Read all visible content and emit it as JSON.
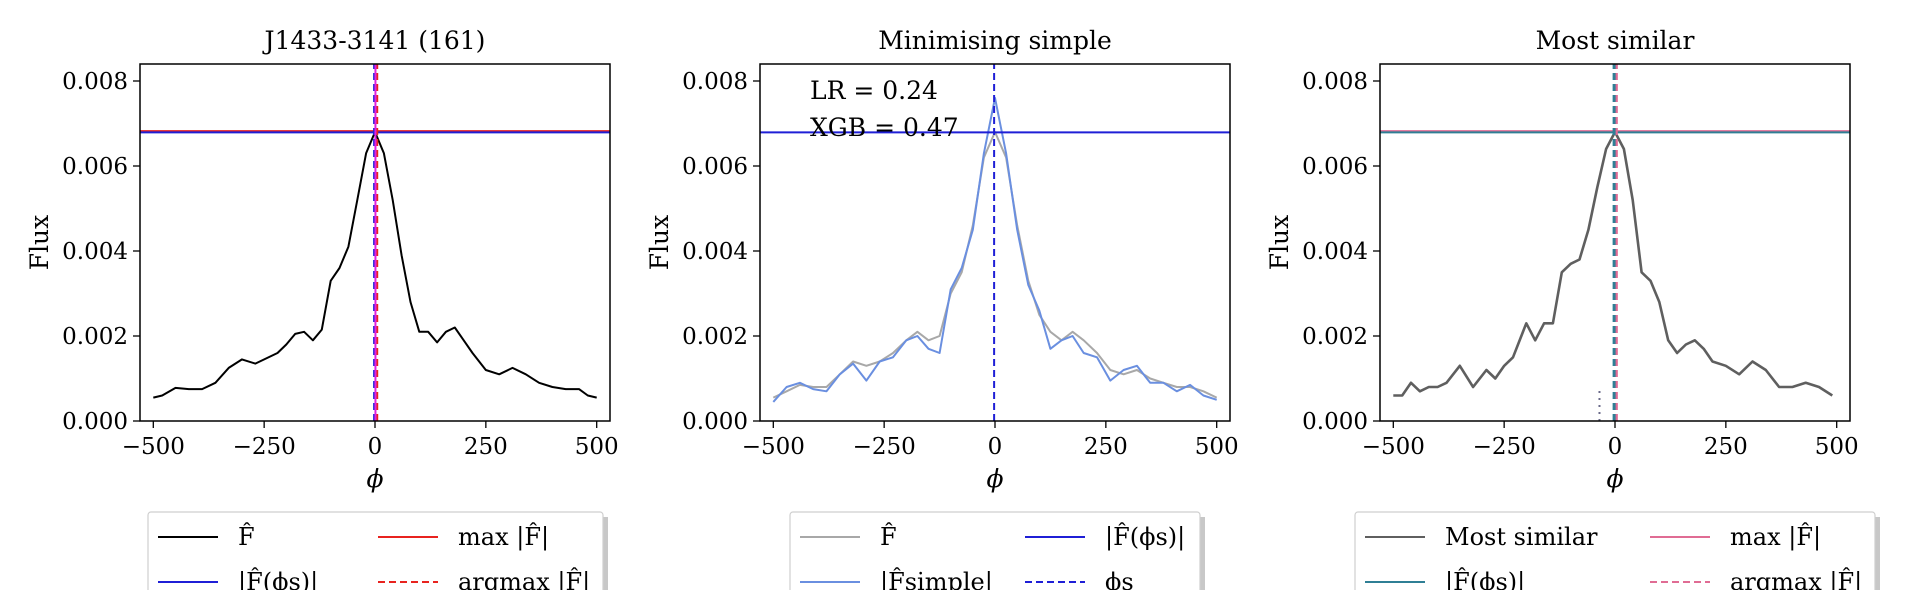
{
  "chart_data": [
    {
      "type": "line",
      "title": "J1433-3141 (161)",
      "xlabel": "ϕ",
      "ylabel": "Flux",
      "xlim": [
        -530,
        530
      ],
      "ylim": [
        0,
        0.0084
      ],
      "xticks": [
        -500,
        -250,
        0,
        250,
        500
      ],
      "xtick_labels": [
        "−500",
        "−250",
        "0",
        "250",
        "500"
      ],
      "yticks": [
        0,
        0.002,
        0.004,
        0.006,
        0.008
      ],
      "ytick_labels": [
        "0.000",
        "0.002",
        "0.004",
        "0.006",
        "0.008"
      ],
      "annotations": [],
      "series": [
        {
          "name": "F̂",
          "style": "solid",
          "color": "#000000",
          "x": [
            -500,
            -480,
            -450,
            -420,
            -390,
            -360,
            -330,
            -300,
            -270,
            -250,
            -220,
            -200,
            -180,
            -160,
            -140,
            -120,
            -100,
            -80,
            -60,
            -40,
            -20,
            0,
            20,
            40,
            60,
            80,
            100,
            120,
            140,
            160,
            180,
            200,
            220,
            250,
            280,
            310,
            340,
            370,
            400,
            430,
            460,
            480,
            500
          ],
          "y": [
            0.00055,
            0.0006,
            0.00078,
            0.00075,
            0.00075,
            0.0009,
            0.00125,
            0.00145,
            0.00135,
            0.00145,
            0.0016,
            0.0018,
            0.00205,
            0.0021,
            0.0019,
            0.00215,
            0.0033,
            0.0036,
            0.0041,
            0.0052,
            0.0063,
            0.0068,
            0.0063,
            0.0052,
            0.0039,
            0.0028,
            0.0021,
            0.0021,
            0.00185,
            0.0021,
            0.0022,
            0.0019,
            0.0016,
            0.0012,
            0.0011,
            0.00125,
            0.0011,
            0.0009,
            0.0008,
            0.00075,
            0.00075,
            0.0006,
            0.00055
          ]
        }
      ],
      "hlines": [
        {
          "name": "max |F̂|",
          "y": 0.00682,
          "color": "#e8231f",
          "style": "solid"
        },
        {
          "name": "|F̂(ϕs)|",
          "y": 0.00679,
          "color": "#1f1fd6",
          "style": "solid"
        }
      ],
      "vlines": [
        {
          "name": "argmax |F̂|",
          "x": 5,
          "color": "#e8231f",
          "style": "dashed"
        },
        {
          "name": "ϕs",
          "x": -2,
          "color": "#1f1fd6",
          "style": "dashed"
        },
        {
          "name": "",
          "x": 1,
          "color": "#e020e0",
          "style": "solid"
        }
      ],
      "legend": [
        {
          "label": "F̂",
          "color": "#000000",
          "style": "solid"
        },
        {
          "label": "max |F̂|",
          "color": "#e8231f",
          "style": "solid"
        },
        {
          "label": "|F̂(ϕs)|",
          "color": "#1f1fd6",
          "style": "solid"
        },
        {
          "label": "argmax |F̂|",
          "color": "#e8231f",
          "style": "dashed"
        }
      ]
    },
    {
      "type": "line",
      "title": "Minimising simple",
      "xlabel": "ϕ",
      "ylabel": "Flux",
      "xlim": [
        -530,
        530
      ],
      "ylim": [
        0,
        0.0084
      ],
      "xticks": [
        -500,
        -250,
        0,
        250,
        500
      ],
      "xtick_labels": [
        "−500",
        "−250",
        "0",
        "250",
        "500"
      ],
      "yticks": [
        0,
        0.002,
        0.004,
        0.006,
        0.008
      ],
      "ytick_labels": [
        "0.000",
        "0.002",
        "0.004",
        "0.006",
        "0.008"
      ],
      "annotations": [
        "LR = 0.24",
        "XGB = 0.47"
      ],
      "series": [
        {
          "name": "F̂",
          "style": "solid",
          "color": "#a8a8a8",
          "x": [
            -500,
            -470,
            -440,
            -410,
            -380,
            -350,
            -320,
            -290,
            -260,
            -230,
            -200,
            -175,
            -150,
            -125,
            -100,
            -75,
            -50,
            -25,
            0,
            25,
            50,
            75,
            100,
            125,
            150,
            175,
            200,
            230,
            260,
            290,
            320,
            350,
            380,
            410,
            440,
            470,
            500
          ],
          "y": [
            0.00055,
            0.0007,
            0.00085,
            0.0008,
            0.0008,
            0.0011,
            0.0014,
            0.0013,
            0.0014,
            0.0016,
            0.0019,
            0.0021,
            0.0019,
            0.002,
            0.003,
            0.0035,
            0.0046,
            0.0062,
            0.0068,
            0.0062,
            0.0046,
            0.0033,
            0.0025,
            0.0021,
            0.0019,
            0.0021,
            0.0019,
            0.0016,
            0.0012,
            0.0011,
            0.0012,
            0.001,
            0.0009,
            0.0008,
            0.0008,
            0.0007,
            0.00055
          ]
        },
        {
          "name": "|F̂simple|",
          "style": "solid",
          "color": "#6a8fe0",
          "x": [
            -500,
            -470,
            -440,
            -410,
            -380,
            -350,
            -320,
            -290,
            -260,
            -230,
            -200,
            -175,
            -150,
            -125,
            -100,
            -75,
            -50,
            -25,
            0,
            25,
            50,
            75,
            100,
            125,
            150,
            175,
            200,
            230,
            260,
            290,
            320,
            350,
            380,
            410,
            440,
            470,
            500
          ],
          "y": [
            0.00045,
            0.0008,
            0.0009,
            0.00075,
            0.0007,
            0.0011,
            0.00135,
            0.00095,
            0.0014,
            0.0015,
            0.0019,
            0.002,
            0.0017,
            0.0016,
            0.0031,
            0.0036,
            0.0045,
            0.0063,
            0.0076,
            0.0063,
            0.0045,
            0.0032,
            0.0026,
            0.0017,
            0.0019,
            0.002,
            0.0016,
            0.0015,
            0.00095,
            0.0012,
            0.0013,
            0.0009,
            0.0009,
            0.0007,
            0.00085,
            0.0006,
            0.0005
          ]
        }
      ],
      "hlines": [
        {
          "name": "|F̂(ϕs)|",
          "y": 0.00679,
          "color": "#1f1fd6",
          "style": "solid"
        }
      ],
      "vlines": [
        {
          "name": "ϕs",
          "x": -2,
          "color": "#1f1fd6",
          "style": "dashed"
        }
      ],
      "legend": [
        {
          "label": "F̂",
          "color": "#a8a8a8",
          "style": "solid"
        },
        {
          "label": "|F̂(ϕs)|",
          "color": "#1f1fd6",
          "style": "solid"
        },
        {
          "label": "|F̂simple|",
          "color": "#6a8fe0",
          "style": "solid"
        },
        {
          "label": "ϕs",
          "color": "#1f1fd6",
          "style": "dashed"
        }
      ]
    },
    {
      "type": "line",
      "title": "Most similar",
      "xlabel": "ϕ",
      "ylabel": "Flux",
      "xlim": [
        -530,
        530
      ],
      "ylim": [
        0,
        0.0084
      ],
      "xticks": [
        -500,
        -250,
        0,
        250,
        500
      ],
      "xtick_labels": [
        "−500",
        "−250",
        "0",
        "250",
        "500"
      ],
      "yticks": [
        0,
        0.002,
        0.004,
        0.006,
        0.008
      ],
      "ytick_labels": [
        "0.000",
        "0.002",
        "0.004",
        "0.006",
        "0.008"
      ],
      "annotations": [],
      "series": [
        {
          "name": "Most similar",
          "style": "solid",
          "color": "#5f5f5f",
          "x": [
            -500,
            -480,
            -460,
            -440,
            -420,
            -400,
            -380,
            -350,
            -320,
            -290,
            -270,
            -250,
            -230,
            -200,
            -180,
            -160,
            -140,
            -120,
            -100,
            -80,
            -60,
            -40,
            -20,
            0,
            20,
            40,
            60,
            80,
            100,
            120,
            140,
            160,
            180,
            200,
            220,
            250,
            280,
            310,
            340,
            370,
            400,
            430,
            460,
            490
          ],
          "y": [
            0.0006,
            0.0006,
            0.0009,
            0.0007,
            0.0008,
            0.0008,
            0.0009,
            0.0013,
            0.0008,
            0.0012,
            0.001,
            0.0013,
            0.0015,
            0.0023,
            0.0019,
            0.0023,
            0.0023,
            0.0035,
            0.0037,
            0.0038,
            0.0045,
            0.0055,
            0.0064,
            0.0068,
            0.0064,
            0.0052,
            0.0035,
            0.0033,
            0.0028,
            0.0019,
            0.0016,
            0.0018,
            0.0019,
            0.0017,
            0.0014,
            0.0013,
            0.0011,
            0.0014,
            0.0012,
            0.0008,
            0.0008,
            0.0009,
            0.0008,
            0.0006
          ]
        }
      ],
      "hlines": [
        {
          "name": "max |F̂|",
          "y": 0.00682,
          "color": "#e06c94",
          "style": "solid"
        },
        {
          "name": "|F̂(ϕs)|",
          "y": 0.00679,
          "color": "#2f7f95",
          "style": "solid"
        }
      ],
      "vlines": [
        {
          "name": "argmax |F̂|",
          "x": 3,
          "color": "#e06c94",
          "style": "dashed"
        },
        {
          "name": "ϕs",
          "x": -2,
          "color": "#2f7f95",
          "style": "dashed"
        },
        {
          "name": "",
          "x": -35,
          "color": "#6a6a8a",
          "style": "dotted",
          "ymax": 0.0008
        }
      ],
      "legend": [
        {
          "label": "Most similar",
          "color": "#5f5f5f",
          "style": "solid"
        },
        {
          "label": "max |F̂|",
          "color": "#e06c94",
          "style": "solid"
        },
        {
          "label": "|F̂(ϕs)|",
          "color": "#2f7f95",
          "style": "solid"
        },
        {
          "label": "argmax |F̂|",
          "color": "#e06c94",
          "style": "dashed"
        }
      ]
    }
  ]
}
